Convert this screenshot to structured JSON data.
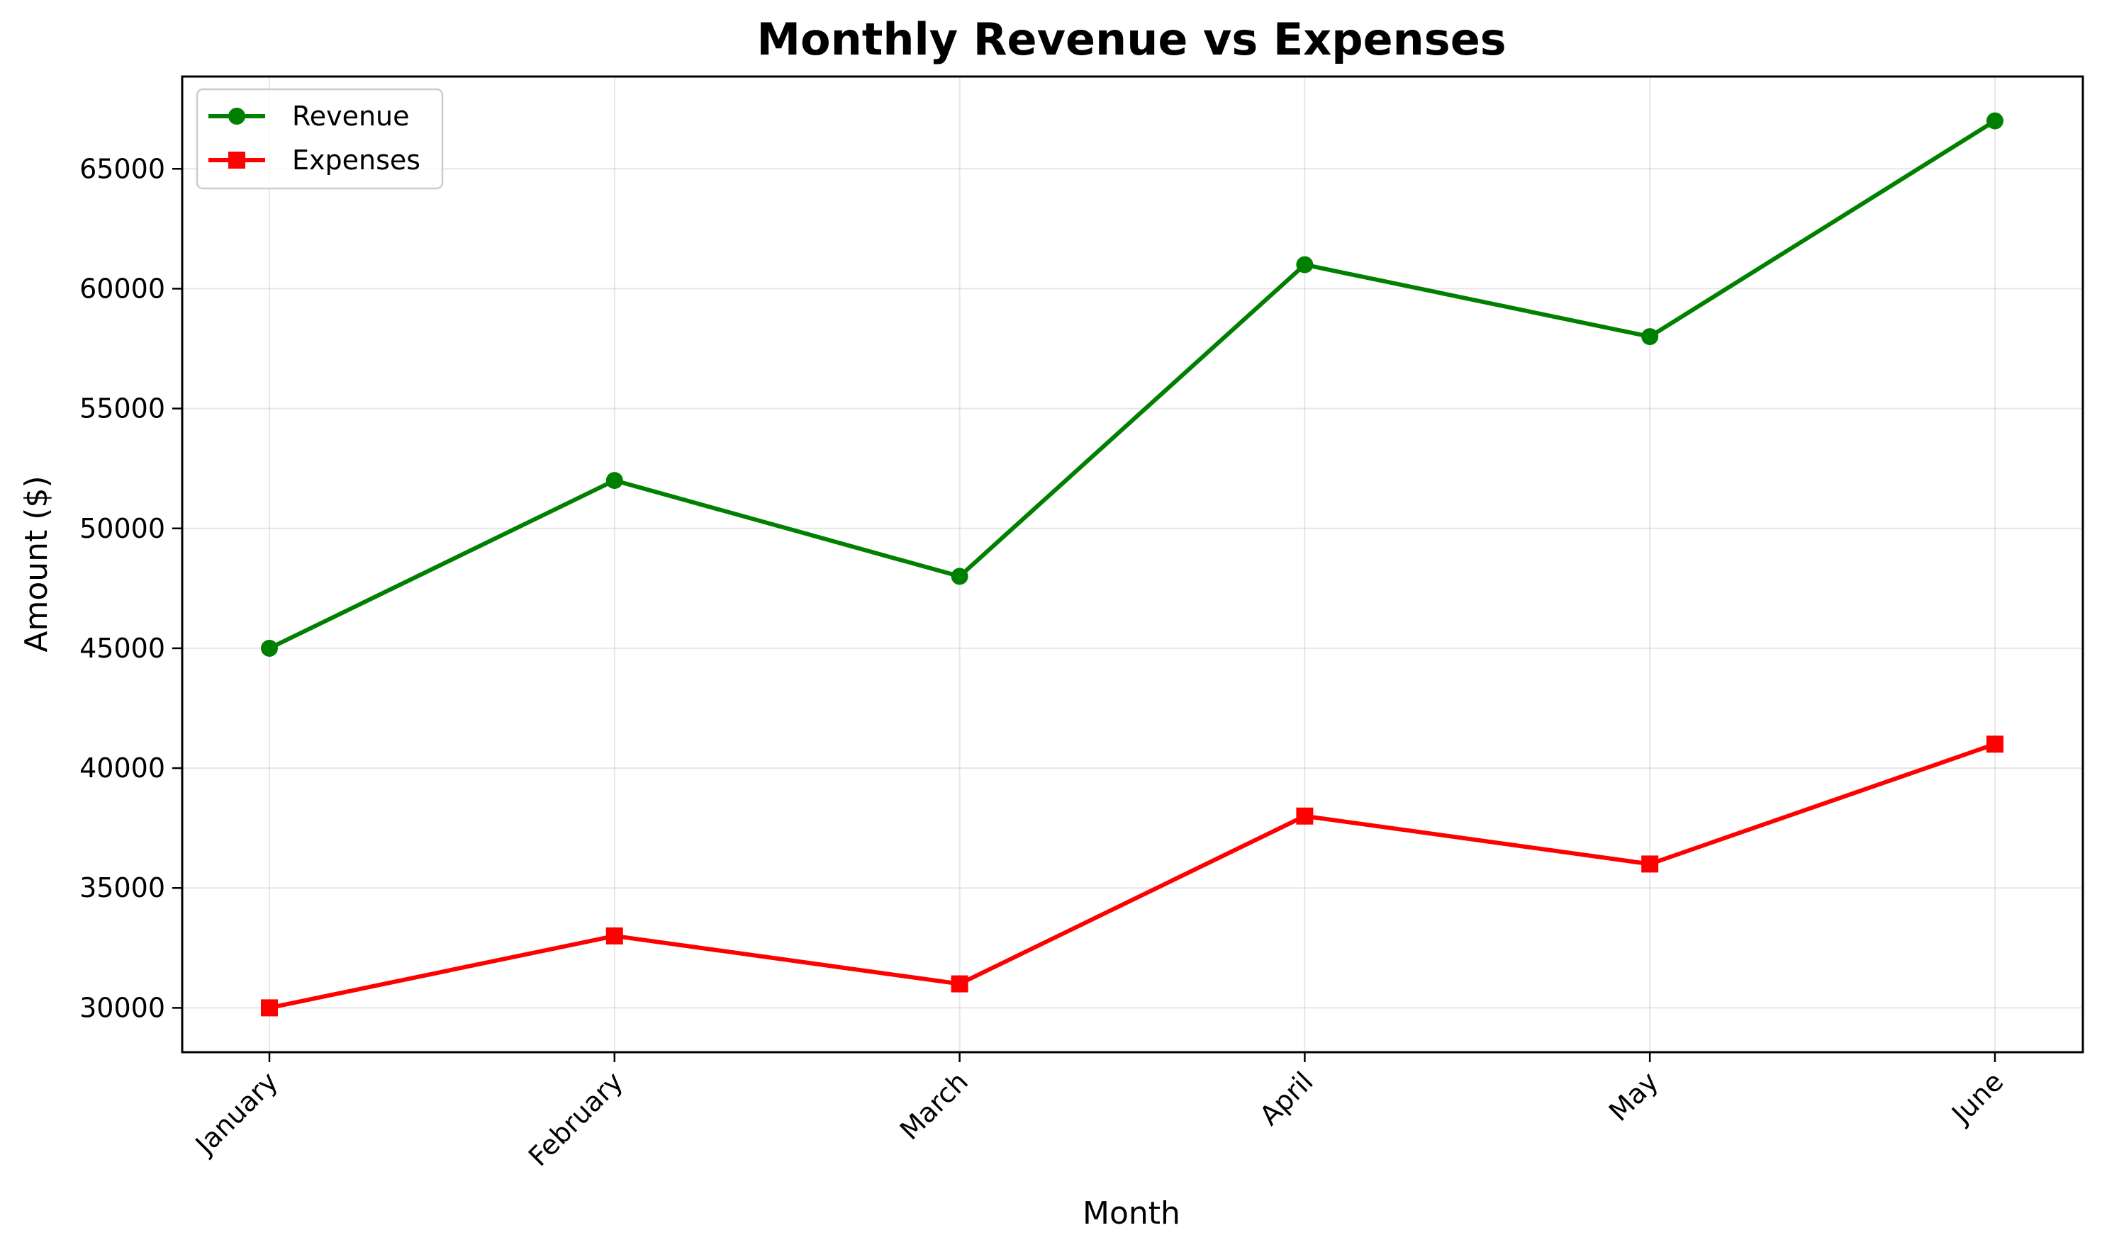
{
  "chart_data": {
    "type": "line",
    "title": "Monthly Revenue vs Expenses",
    "xlabel": "Month",
    "ylabel": "Amount ($)",
    "categories": [
      "January",
      "February",
      "March",
      "April",
      "May",
      "June"
    ],
    "series": [
      {
        "name": "Revenue",
        "values": [
          45000,
          52000,
          48000,
          61000,
          58000,
          67000
        ],
        "color": "#008000",
        "marker": "circle"
      },
      {
        "name": "Expenses",
        "values": [
          30000,
          33000,
          31000,
          38000,
          36000,
          41000
        ],
        "color": "#ff0000",
        "marker": "square"
      }
    ],
    "yticks": [
      30000,
      35000,
      40000,
      45000,
      50000,
      55000,
      60000,
      65000
    ],
    "ylim": [
      28150,
      68850
    ],
    "grid": true,
    "legend": "top-left",
    "xtick_rotation": 45
  }
}
